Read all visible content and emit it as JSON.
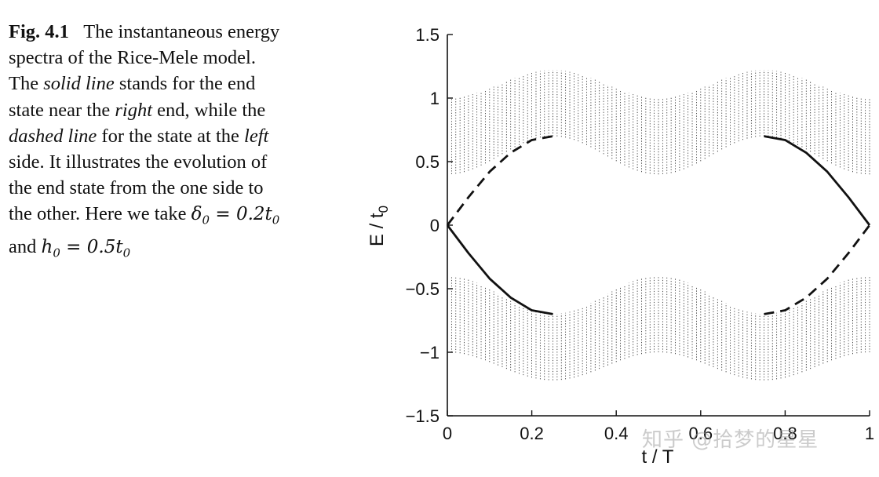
{
  "caption": {
    "fig_label": "Fig. 4.1",
    "t1": "The instantaneous energy spectra of the Rice-Mele model. The ",
    "i1": "solid line",
    "t2": " stands for the end state near the ",
    "i2": "right",
    "t3": " end, while the ",
    "i3": "dashed line",
    "t4": " for the state at the ",
    "i4": "left",
    "t5": " side. It illustrates the evolution of the end state from the one side to the other. Here we take ",
    "m1": "δ",
    "m1sub": "0",
    "m1rest": " = 0.2t",
    "m1restsub": "0",
    "t6": " and ",
    "m2": "h",
    "m2sub": "0",
    "m2rest": " = 0.5t",
    "m2restsub": "0"
  },
  "watermark": "知乎 @拾梦的星星",
  "chart_data": {
    "type": "line",
    "xlabel": "t / T",
    "ylabel": "E / t",
    "ylabel_sub": "0",
    "xlim": [
      0,
      1
    ],
    "ylim": [
      -1.5,
      1.5
    ],
    "x_ticks": [
      "0",
      "0.2",
      "0.4",
      "0.6",
      "0.8",
      "1"
    ],
    "y_ticks": [
      "1.5",
      "1",
      "0.5",
      "0",
      "−0.5",
      "−1",
      "−1.5"
    ],
    "bulk_bands": {
      "upper": {
        "x": [
          0,
          0.25,
          0.5,
          0.75,
          1
        ],
        "lower_edge": [
          0.4,
          0.7,
          0.4,
          0.7,
          0.4
        ],
        "upper_edge": [
          1.0,
          1.22,
          1.0,
          1.22,
          1.0
        ]
      },
      "lower": {
        "x": [
          0,
          0.25,
          0.5,
          0.75,
          1
        ],
        "upper_edge": [
          -0.4,
          -0.7,
          -0.4,
          -0.7,
          -0.4
        ],
        "lower_edge": [
          -1.0,
          -1.22,
          -1.0,
          -1.22,
          -1.0
        ]
      }
    },
    "series": [
      {
        "style": "solid",
        "x": [
          0,
          0.05,
          0.1,
          0.15,
          0.2,
          0.25
        ],
        "y": [
          0,
          -0.22,
          -0.42,
          -0.57,
          -0.67,
          -0.7
        ]
      },
      {
        "style": "dashed",
        "x": [
          0,
          0.05,
          0.1,
          0.15,
          0.2,
          0.25
        ],
        "y": [
          0,
          0.22,
          0.42,
          0.57,
          0.67,
          0.7
        ]
      },
      {
        "style": "solid",
        "x": [
          0.75,
          0.8,
          0.85,
          0.9,
          0.95,
          1.0
        ],
        "y": [
          0.7,
          0.67,
          0.57,
          0.42,
          0.22,
          0
        ]
      },
      {
        "style": "dashed",
        "x": [
          0.75,
          0.8,
          0.85,
          0.9,
          0.95,
          1.0
        ],
        "y": [
          -0.7,
          -0.67,
          -0.57,
          -0.42,
          -0.22,
          0
        ]
      }
    ],
    "grid": false,
    "legend": "none"
  }
}
